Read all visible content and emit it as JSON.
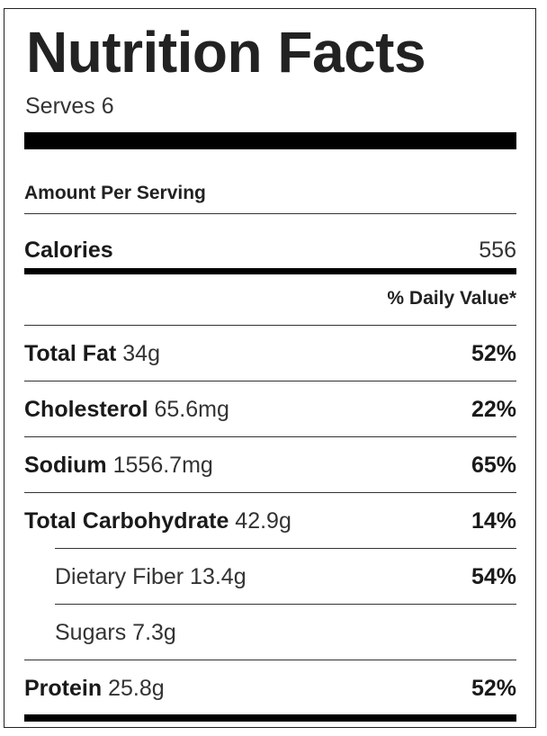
{
  "title": "Nutrition Facts",
  "serves": "Serves 6",
  "amount_per_serving": "Amount Per Serving",
  "calories": {
    "label": "Calories",
    "value": "556"
  },
  "daily_value_header": "% Daily Value*",
  "nutrients": {
    "total_fat": {
      "label": "Total Fat",
      "amount": "34g",
      "dv": "52%"
    },
    "cholesterol": {
      "label": "Cholesterol",
      "amount": "65.6mg",
      "dv": "22%"
    },
    "sodium": {
      "label": "Sodium",
      "amount": "1556.7mg",
      "dv": "65%"
    },
    "total_carbohydrate": {
      "label": "Total Carbohydrate",
      "amount": "42.9g",
      "dv": "14%"
    },
    "dietary_fiber": {
      "label": "Dietary Fiber",
      "amount": "13.4g",
      "dv": "54%"
    },
    "sugars": {
      "label": "Sugars",
      "amount": "7.3g"
    },
    "protein": {
      "label": "Protein",
      "amount": "25.8g",
      "dv": "52%"
    }
  }
}
